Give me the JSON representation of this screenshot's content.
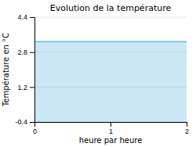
{
  "chart_data": {
    "type": "area",
    "title": "Evolution de la température",
    "x_label": "heure par heure",
    "y_label": "Température en °C",
    "x": [
      0,
      2
    ],
    "values": [
      3.28,
      3.28
    ],
    "color": "#66bbdd",
    "xlim": [
      0,
      2
    ],
    "ylim": [
      -0.4,
      4.4
    ],
    "xticks": [
      0,
      1,
      2
    ],
    "yticks": [
      -0.4,
      1.2,
      2.8,
      4.4
    ],
    "grid": true
  }
}
